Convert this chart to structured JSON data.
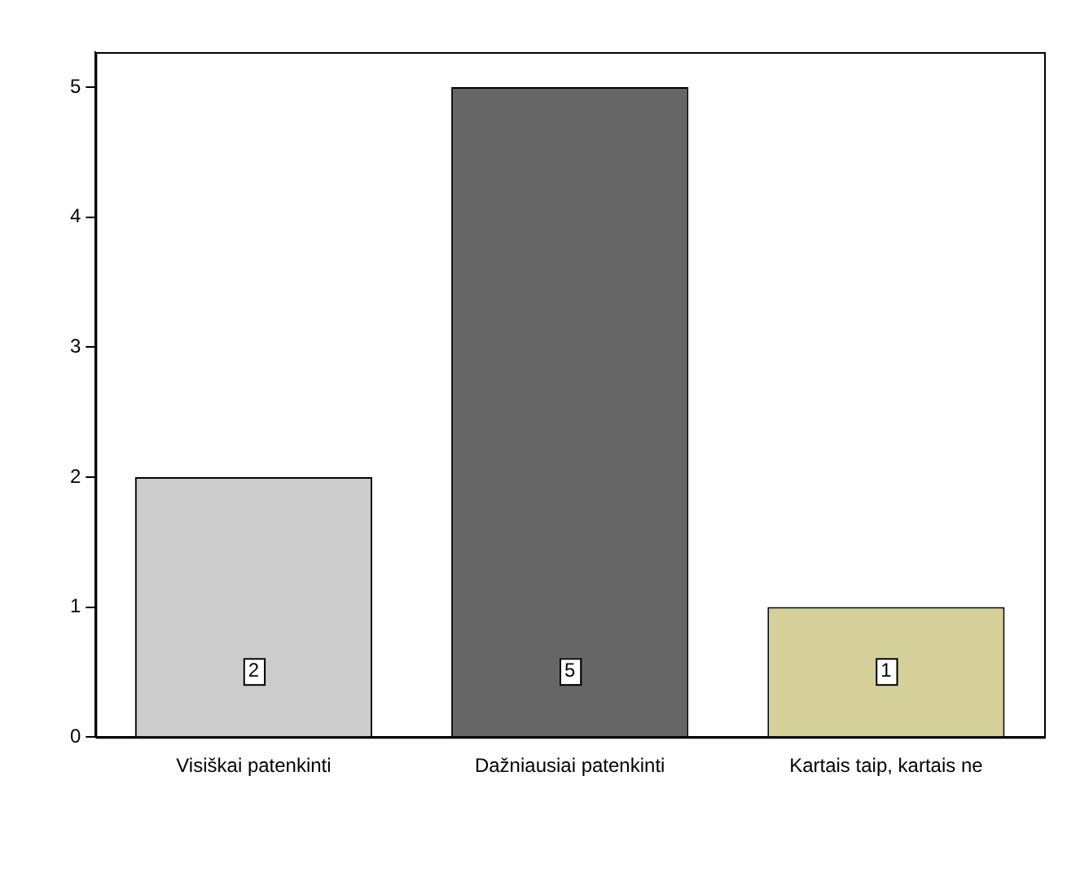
{
  "chart_data": {
    "type": "bar",
    "categories": [
      "Visiškai patenkinti",
      "Dažniausiai patenkinti",
      "Kartais taip, kartais ne"
    ],
    "values": [
      2,
      5,
      1
    ],
    "colors": [
      "#cccccc",
      "#666666",
      "#d5d09a"
    ],
    "ylim": [
      0,
      5.27
    ],
    "yticks": [
      0,
      1,
      2,
      3,
      4,
      5
    ],
    "grid": false,
    "legend": false,
    "data_labels": true
  }
}
